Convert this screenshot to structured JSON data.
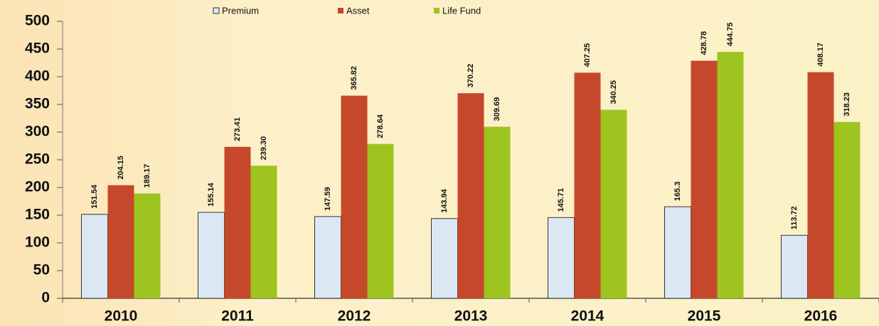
{
  "chart_data": {
    "type": "bar",
    "categories": [
      "2010",
      "2011",
      "2012",
      "2013",
      "2014",
      "2015",
      "2016"
    ],
    "series": [
      {
        "name": "Premium",
        "color": "#dbe8f4",
        "values": [
          151.54,
          155.14,
          147.59,
          143.94,
          145.71,
          165.3,
          113.72
        ]
      },
      {
        "name": "Asset",
        "color": "#c6482b",
        "values": [
          204.15,
          273.41,
          365.82,
          370.22,
          407.25,
          428.78,
          408.17
        ]
      },
      {
        "name": "Life Fund",
        "color": "#9dc41f",
        "values": [
          189.17,
          239.3,
          278.64,
          309.69,
          340.25,
          444.75,
          318.23
        ],
        "value_labels": [
          "189.17",
          "239.30",
          "278.64",
          "309.69",
          "340.25",
          "444.75",
          "318.23"
        ]
      }
    ],
    "ylim": [
      0,
      500
    ],
    "yticks": [
      0,
      50,
      100,
      150,
      200,
      250,
      300,
      350,
      400,
      450,
      500
    ],
    "grid": false,
    "legend": "top"
  }
}
